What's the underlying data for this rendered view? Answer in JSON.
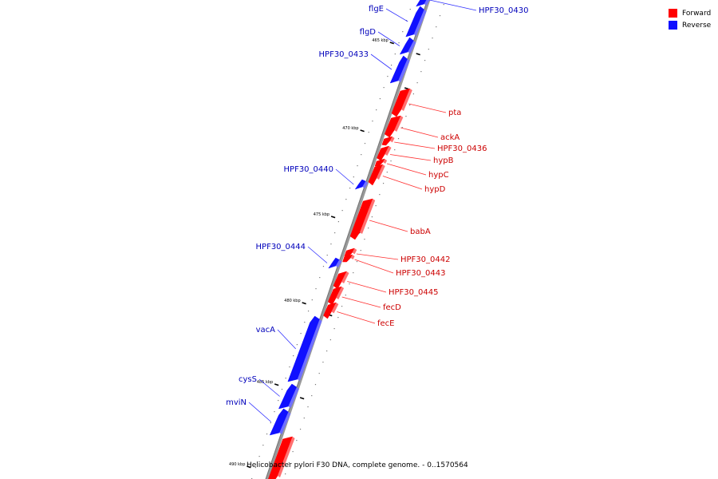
{
  "title": "Helicobacter pylori F30 DNA, complete genome. - 0..1570564",
  "legend": [
    {
      "label": "Forward",
      "color": "#ff0000"
    },
    {
      "label": "Reverse",
      "color": "#1010ff"
    }
  ],
  "scale_labels": [
    "465 kbp",
    "470 kbp",
    "475 kbp",
    "480 kbp",
    "485 kbp",
    "490 kbp"
  ],
  "genes": [
    {
      "name": "HPF30_0430",
      "strand": "reverse"
    },
    {
      "name": "flgE",
      "strand": "reverse"
    },
    {
      "name": "flgD",
      "strand": "reverse"
    },
    {
      "name": "HPF30_0433",
      "strand": "reverse"
    },
    {
      "name": "pta",
      "strand": "forward"
    },
    {
      "name": "ackA",
      "strand": "forward"
    },
    {
      "name": "HPF30_0436",
      "strand": "forward"
    },
    {
      "name": "hypB",
      "strand": "forward"
    },
    {
      "name": "hypC",
      "strand": "forward"
    },
    {
      "name": "hypD",
      "strand": "forward"
    },
    {
      "name": "HPF30_0440",
      "strand": "reverse"
    },
    {
      "name": "babA",
      "strand": "forward"
    },
    {
      "name": "HPF30_0442",
      "strand": "forward"
    },
    {
      "name": "HPF30_0443",
      "strand": "forward"
    },
    {
      "name": "HPF30_0444",
      "strand": "reverse"
    },
    {
      "name": "HPF30_0445",
      "strand": "forward"
    },
    {
      "name": "fecD",
      "strand": "forward"
    },
    {
      "name": "fecE",
      "strand": "forward"
    },
    {
      "name": "vacA",
      "strand": "reverse"
    },
    {
      "name": "cysS",
      "strand": "reverse"
    },
    {
      "name": "mviN",
      "strand": "reverse"
    },
    {
      "name": "",
      "strand": "forward"
    }
  ]
}
